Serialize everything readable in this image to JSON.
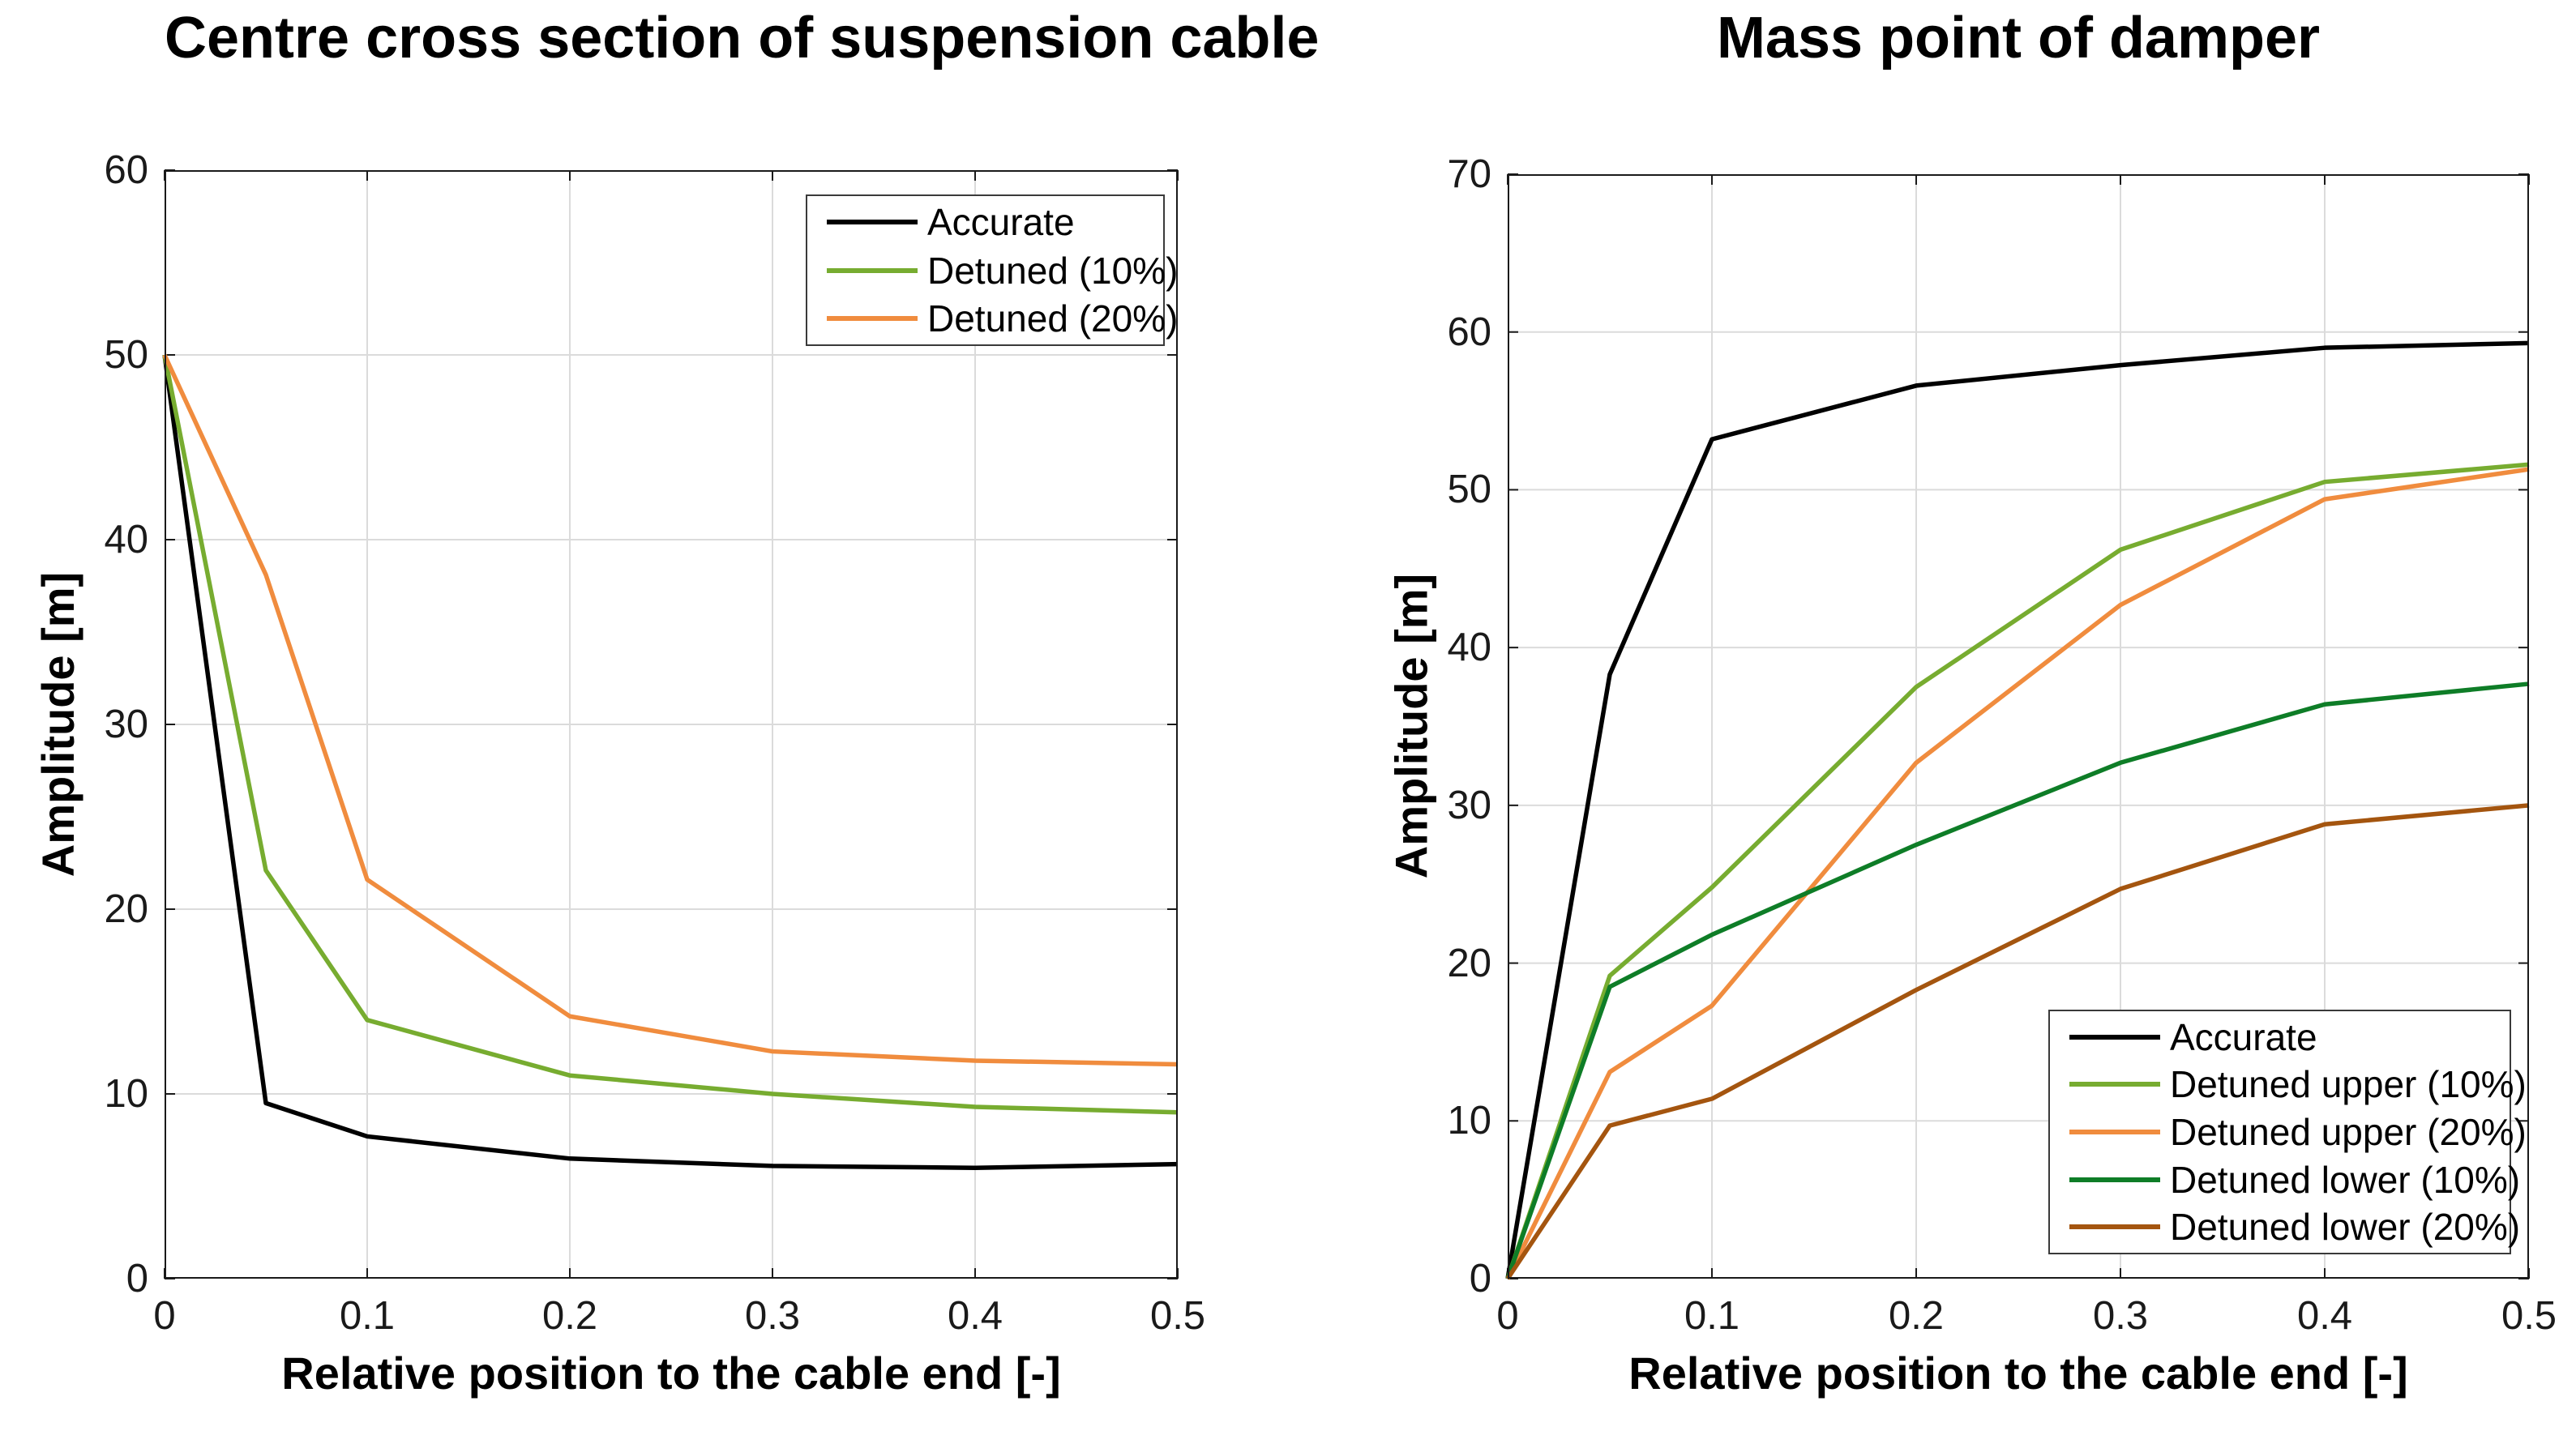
{
  "chart_data": [
    {
      "type": "line",
      "title": "Centre cross section of suspension cable",
      "xlabel": "Relative position to the cable end [-]",
      "ylabel": "Amplitude [m]",
      "xlim": [
        0,
        0.5
      ],
      "ylim": [
        0,
        60
      ],
      "xticks": [
        0,
        0.1,
        0.2,
        0.3,
        0.4,
        0.5
      ],
      "yticks": [
        0,
        10,
        20,
        30,
        40,
        50,
        60
      ],
      "grid": true,
      "legend_position": "upper-right",
      "x": [
        0,
        0.05,
        0.1,
        0.2,
        0.3,
        0.4,
        0.5
      ],
      "series": [
        {
          "name": "Accurate",
          "color": "#000000",
          "values": [
            50,
            9.5,
            7.7,
            6.5,
            6.1,
            6.0,
            6.2
          ]
        },
        {
          "name": "Detuned (10%)",
          "color": "#77AC30",
          "values": [
            50,
            22.1,
            14.0,
            11.0,
            10.0,
            9.3,
            9.0
          ]
        },
        {
          "name": "Detuned (20%)",
          "color": "#F08C3E",
          "values": [
            50,
            38.1,
            21.6,
            14.2,
            12.3,
            11.8,
            11.6
          ]
        }
      ]
    },
    {
      "type": "line",
      "title": "Mass point of damper",
      "xlabel": "Relative position to the cable end [-]",
      "ylabel": "Amplitude [m]",
      "xlim": [
        0,
        0.5
      ],
      "ylim": [
        0,
        70
      ],
      "xticks": [
        0,
        0.1,
        0.2,
        0.3,
        0.4,
        0.5
      ],
      "yticks": [
        0,
        10,
        20,
        30,
        40,
        50,
        60,
        70
      ],
      "grid": true,
      "legend_position": "lower-right",
      "x": [
        0,
        0.05,
        0.1,
        0.2,
        0.3,
        0.4,
        0.5
      ],
      "series": [
        {
          "name": "Accurate",
          "color": "#000000",
          "values": [
            0,
            38.3,
            53.2,
            56.6,
            57.9,
            59.0,
            59.3
          ]
        },
        {
          "name": "Detuned upper (10%)",
          "color": "#77AC30",
          "values": [
            0,
            19.2,
            24.8,
            37.5,
            46.2,
            50.5,
            51.6
          ]
        },
        {
          "name": "Detuned upper (20%)",
          "color": "#F08C3E",
          "values": [
            0,
            13.1,
            17.3,
            32.7,
            42.7,
            49.4,
            51.3
          ]
        },
        {
          "name": "Detuned lower (10%)",
          "color": "#0E7D27",
          "values": [
            0,
            18.5,
            21.8,
            27.5,
            32.7,
            36.4,
            37.7
          ]
        },
        {
          "name": "Detuned lower (20%)",
          "color": "#A4550F",
          "values": [
            0,
            9.7,
            11.4,
            18.3,
            24.7,
            28.8,
            30.0
          ]
        }
      ]
    }
  ]
}
